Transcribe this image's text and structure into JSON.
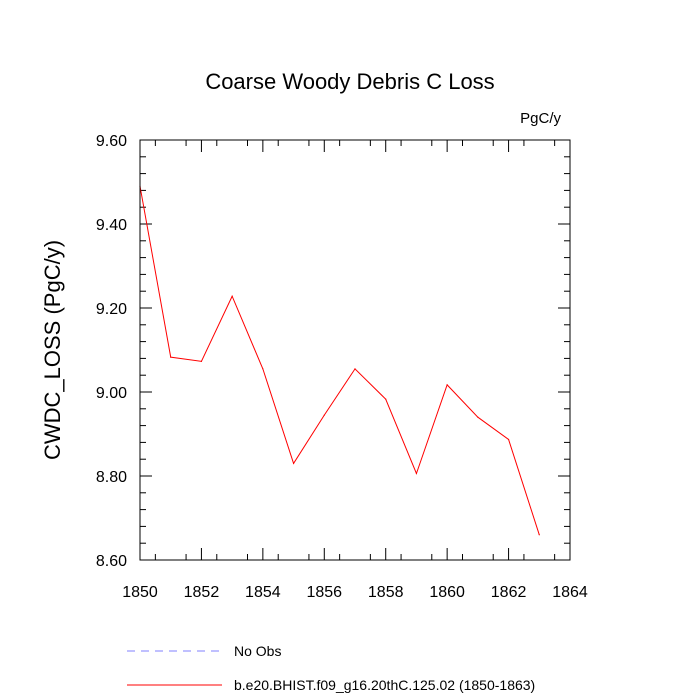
{
  "chart_data": {
    "type": "line",
    "title": "Coarse Woody Debris C Loss",
    "units": "PgC/y",
    "ylabel": "CWDC_LOSS  (PgC/y)",
    "xlabel": "",
    "xlim": [
      1850,
      1864
    ],
    "ylim": [
      8.6,
      9.6
    ],
    "x_ticks": [
      1850,
      1852,
      1854,
      1856,
      1858,
      1860,
      1862,
      1864
    ],
    "x_tick_labels": [
      "1850",
      "1852",
      "1854",
      "1856",
      "1858",
      "1860",
      "1862",
      "1864"
    ],
    "y_ticks": [
      8.6,
      8.8,
      9.0,
      9.2,
      9.4,
      9.6
    ],
    "y_tick_labels": [
      "8.60",
      "8.80",
      "9.00",
      "9.20",
      "9.40",
      "9.60"
    ],
    "grid": false,
    "legend_position": "bottom",
    "series": [
      {
        "name": "b.e20.BHIST.f09_g16.20thC.125.02 (1850-1863)",
        "color": "#ff0000",
        "style": "solid",
        "x": [
          1850,
          1851,
          1852,
          1853,
          1854,
          1855,
          1856,
          1857,
          1858,
          1859,
          1860,
          1861,
          1862,
          1863
        ],
        "y": [
          9.49,
          9.083,
          9.073,
          9.228,
          9.055,
          8.83,
          8.945,
          9.055,
          8.983,
          8.806,
          9.017,
          8.94,
          8.887,
          8.66
        ]
      }
    ],
    "legend": [
      {
        "label": "No Obs",
        "color": "#8080ff",
        "style": "dashed"
      },
      {
        "label": "b.e20.BHIST.f09_g16.20thC.125.02 (1850-1863)",
        "color": "#ff0000",
        "style": "solid"
      }
    ]
  }
}
